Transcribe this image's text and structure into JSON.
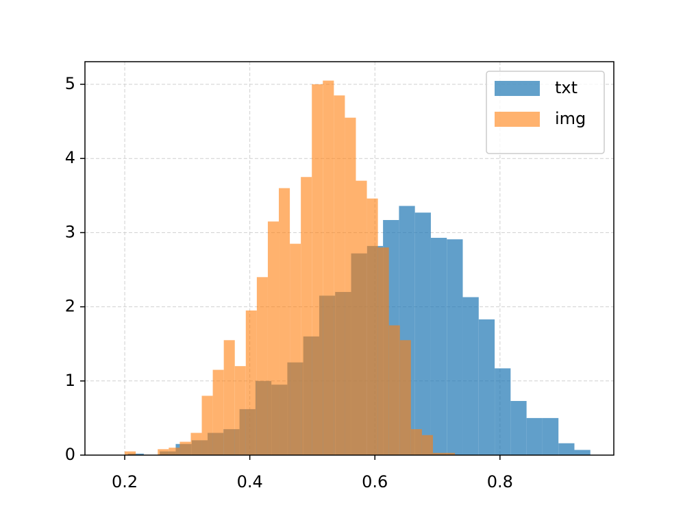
{
  "chart_data": {
    "type": "histogram",
    "series": [
      {
        "name": "txt",
        "color": "#1f77b4",
        "opacity": 0.7,
        "bins": [
          0.205,
          0.2305,
          0.256,
          0.2815,
          0.307,
          0.3325,
          0.358,
          0.3835,
          0.409,
          0.4345,
          0.46,
          0.4855,
          0.511,
          0.5365,
          0.562,
          0.5875,
          0.613,
          0.6385,
          0.664,
          0.6895,
          0.715,
          0.7405,
          0.766,
          0.7915,
          0.817,
          0.8425,
          0.868,
          0.8935,
          0.919,
          0.9445
        ],
        "values": [
          0.02,
          0,
          0.05,
          0.15,
          0.2,
          0.3,
          0.35,
          0.62,
          1.0,
          0.95,
          1.25,
          1.6,
          2.15,
          2.2,
          2.72,
          2.82,
          3.17,
          3.36,
          3.27,
          2.93,
          2.91,
          2.13,
          1.83,
          1.17,
          0.73,
          0.5,
          0.5,
          0.16,
          0.07
        ]
      },
      {
        "name": "img",
        "color": "#ff7f0e",
        "opacity": 0.6,
        "bins": [
          0.2,
          0.2176,
          0.2352,
          0.2528,
          0.2704,
          0.288,
          0.3056,
          0.3232,
          0.3408,
          0.3584,
          0.376,
          0.3936,
          0.4112,
          0.4288,
          0.4464,
          0.464,
          0.4816,
          0.4992,
          0.5168,
          0.5344,
          0.552,
          0.5696,
          0.5872,
          0.6048,
          0.6224,
          0.64,
          0.6576,
          0.6752,
          0.6928,
          0.7104,
          0.728
        ],
        "values": [
          0.05,
          0,
          0,
          0.08,
          0.1,
          0.18,
          0.3,
          0.8,
          1.15,
          1.55,
          1.2,
          1.95,
          2.4,
          3.15,
          3.6,
          2.85,
          3.75,
          5.0,
          5.05,
          4.85,
          4.55,
          3.7,
          3.46,
          2.8,
          1.75,
          1.55,
          0.35,
          0.27,
          0.03,
          0.03
        ]
      }
    ],
    "xlim": [
      0.1364,
      0.982
    ],
    "xticks": [
      0.2,
      0.4,
      0.6,
      0.8
    ],
    "ylim": [
      0,
      5.305
    ],
    "yticks": [
      0,
      1,
      2,
      3,
      4,
      5
    ],
    "grid": true,
    "legend": "upper right"
  }
}
